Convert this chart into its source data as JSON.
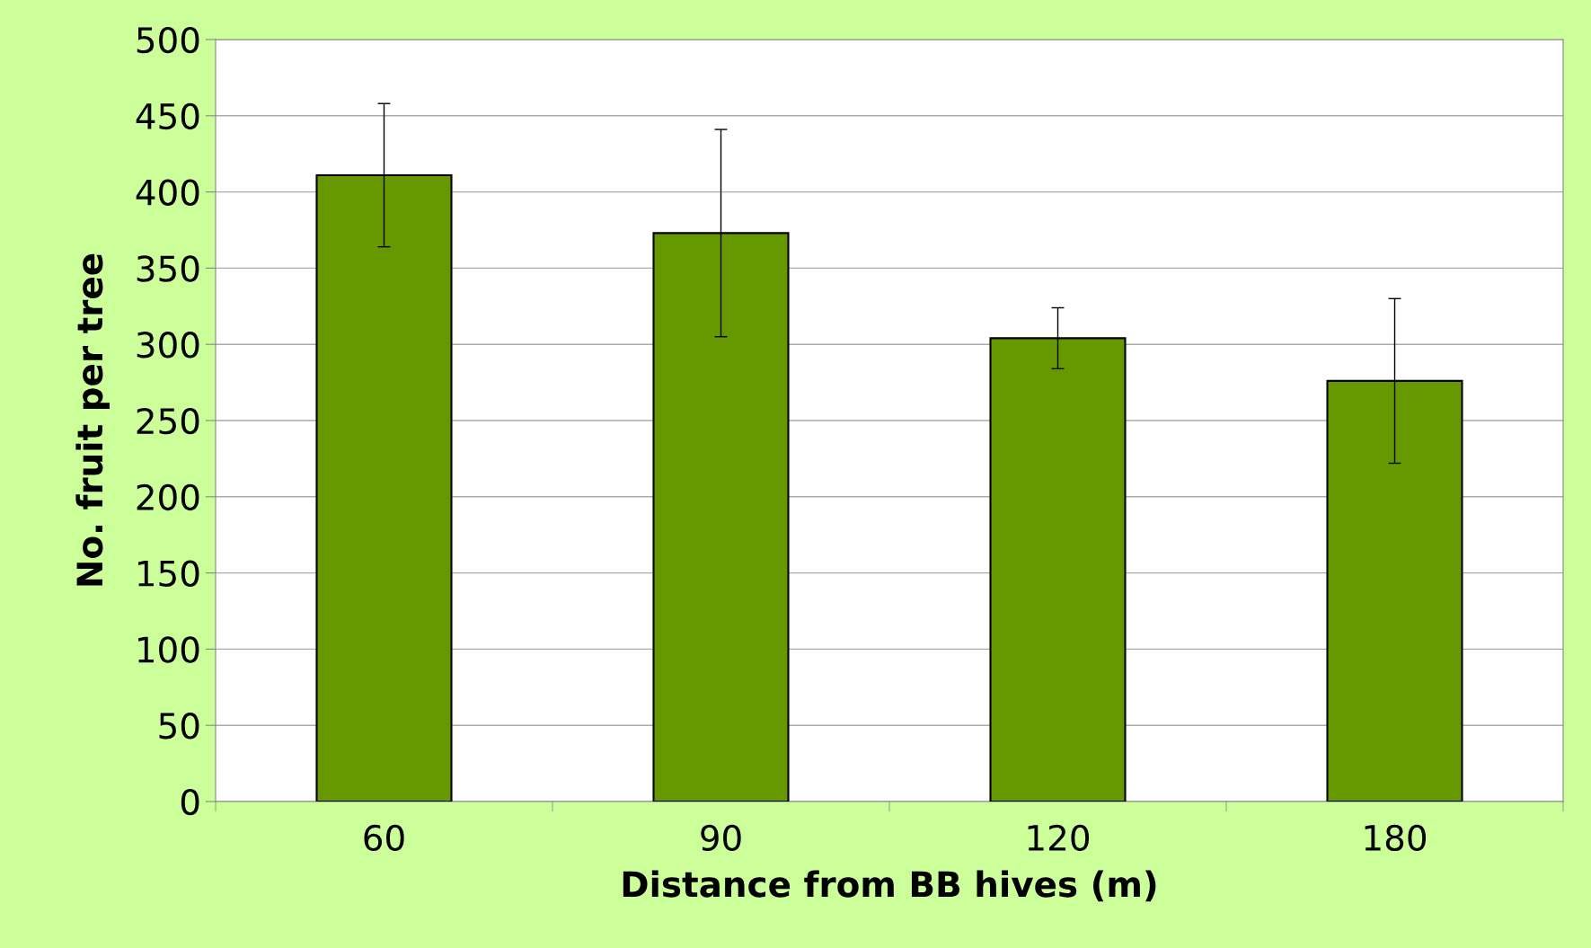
{
  "chart_data": {
    "type": "bar",
    "xlabel": "Distance from BB hives (m)",
    "ylabel": "No. fruit per tree",
    "categories": [
      "60",
      "90",
      "120",
      "180"
    ],
    "values": [
      411,
      373,
      304,
      276
    ],
    "errors": [
      47,
      68,
      20,
      54
    ],
    "color": "#669900",
    "ylim": [
      0,
      500
    ],
    "yticks": [
      0,
      50,
      100,
      150,
      200,
      250,
      300,
      350,
      400,
      450,
      500
    ],
    "grid": "y",
    "legend": false
  }
}
